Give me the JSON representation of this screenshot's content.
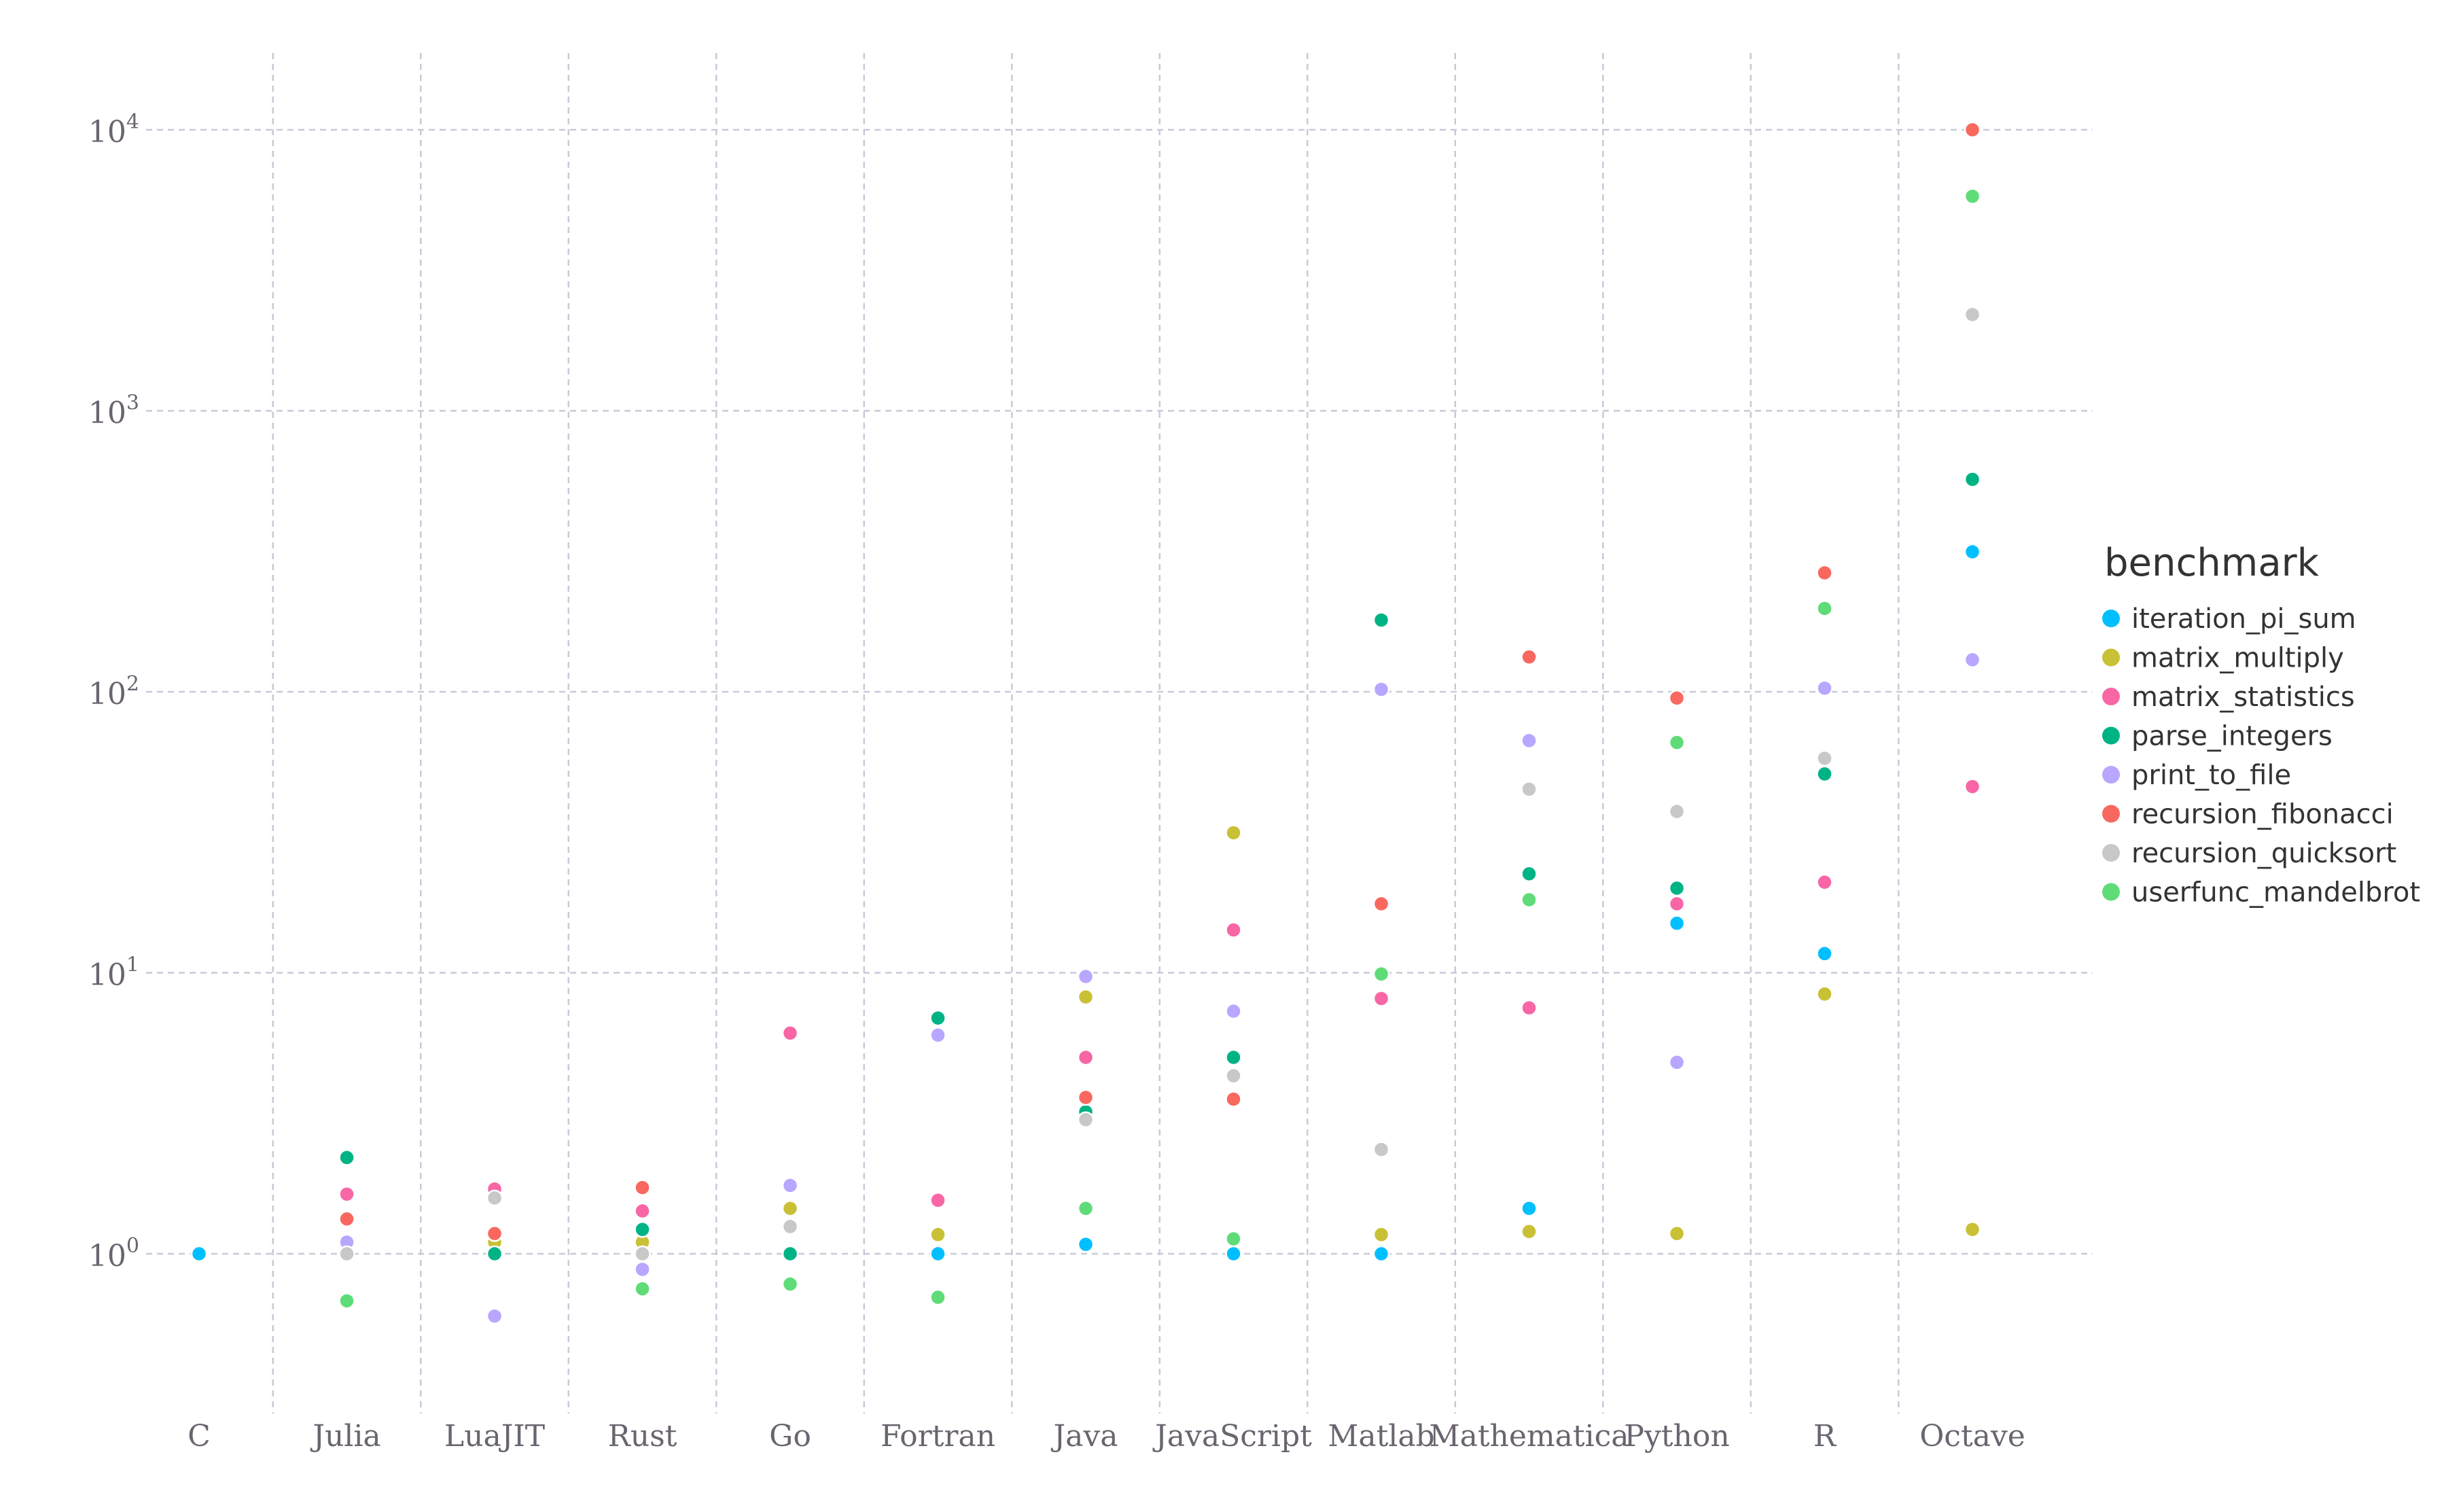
{
  "chart_data": {
    "type": "scatter",
    "x_scale": "categorical",
    "y_scale": "log10",
    "ylim": [
      0.3,
      15000
    ],
    "grid": true,
    "categories": [
      "C",
      "Julia",
      "LuaJIT",
      "Rust",
      "Go",
      "Fortran",
      "Java",
      "JavaScript",
      "Matlab",
      "Mathematica",
      "Python",
      "R",
      "Octave"
    ],
    "y_ticks": [
      {
        "value": 1,
        "base": "10",
        "exp": "0"
      },
      {
        "value": 10,
        "base": "10",
        "exp": "1"
      },
      {
        "value": 100,
        "base": "10",
        "exp": "2"
      },
      {
        "value": 1000,
        "base": "10",
        "exp": "3"
      },
      {
        "value": 10000,
        "base": "10",
        "exp": "4"
      }
    ],
    "legend_title": "benchmark",
    "legend_position": "right",
    "series": [
      {
        "name": "iteration_pi_sum",
        "color": "#00bfff",
        "values": [
          1.0,
          1.0,
          1.0,
          1.0,
          1.0,
          1.0,
          1.08,
          1.0,
          1.0,
          1.45,
          15.0,
          11.7,
          315
        ]
      },
      {
        "name": "matrix_multiply",
        "color": "#c9c135",
        "values": [
          null,
          1.0,
          1.1,
          1.1,
          1.45,
          1.17,
          8.2,
          31.5,
          1.17,
          1.2,
          1.18,
          8.4,
          1.22
        ]
      },
      {
        "name": "matrix_statistics",
        "color": "#f866a6",
        "values": [
          null,
          1.63,
          1.7,
          1.42,
          6.1,
          1.55,
          5.0,
          14.2,
          8.1,
          7.5,
          17.6,
          21.0,
          46.0
        ]
      },
      {
        "name": "parse_integers",
        "color": "#00b385",
        "values": [
          null,
          2.2,
          1.0,
          1.22,
          1.0,
          6.9,
          3.2,
          5.0,
          180,
          22.5,
          20.0,
          51.0,
          570
        ]
      },
      {
        "name": "print_to_file",
        "color": "#b8a6ff",
        "values": [
          null,
          1.1,
          0.6,
          0.88,
          1.75,
          6.0,
          9.7,
          7.3,
          102,
          67.0,
          4.8,
          103,
          130
        ]
      },
      {
        "name": "recursion_fibonacci",
        "color": "#f8685f",
        "values": [
          null,
          1.33,
          1.18,
          1.72,
          null,
          null,
          3.6,
          3.55,
          17.6,
          133,
          95.0,
          265,
          10000
        ]
      },
      {
        "name": "recursion_quicksort",
        "color": "#c8c8c8",
        "values": [
          null,
          1.0,
          1.58,
          1.0,
          1.25,
          null,
          3.0,
          4.3,
          2.35,
          45.0,
          37.5,
          58.0,
          2200
        ]
      },
      {
        "name": "userfunc_mandelbrot",
        "color": "#5fdc78",
        "values": [
          null,
          0.68,
          null,
          0.75,
          0.78,
          0.7,
          1.45,
          1.13,
          9.9,
          18.2,
          66.0,
          198,
          5800
        ]
      }
    ]
  }
}
